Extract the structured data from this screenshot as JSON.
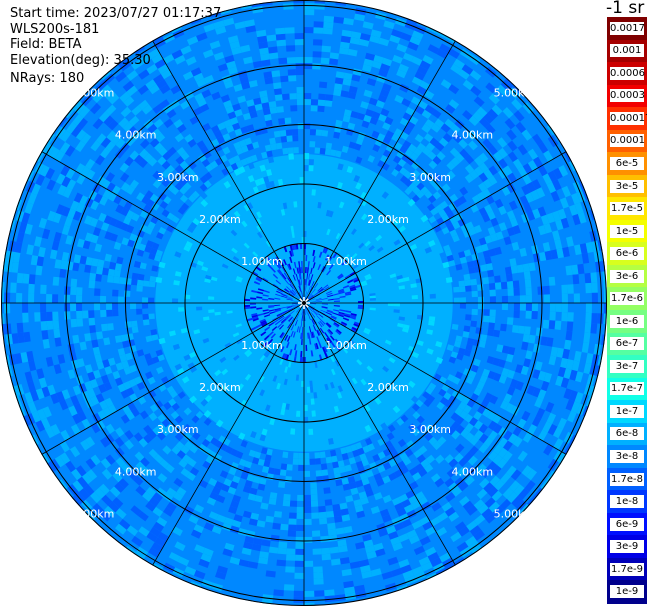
{
  "info": {
    "start_time": "Start time: 2023/07/27 01:17:37",
    "device": "WLS200s-181",
    "field": "Field: BETA",
    "elevation": "Elevation(deg): 35.30",
    "nrays": "NRays: 180"
  },
  "colorbar": {
    "unit_label": "-1 sr",
    "labels": [
      "0.0017",
      "0.001",
      "0.0006",
      "0.0003",
      "0.00017",
      "0.0001",
      "6e-5",
      "3e-5",
      "1.7e-5",
      "1e-5",
      "6e-6",
      "3e-6",
      "1.7e-6",
      "1e-6",
      "6e-7",
      "3e-7",
      "1.7e-7",
      "1e-7",
      "6e-8",
      "3e-8",
      "1.7e-8",
      "1e-8",
      "6e-9",
      "3e-9",
      "1.7e-9",
      "1e-9"
    ],
    "colors": [
      "#7f0000",
      "#a50000",
      "#cc0000",
      "#f20000",
      "#ff3000",
      "#ff6000",
      "#ff9000",
      "#ffbf00",
      "#ffe600",
      "#f4ff00",
      "#d8ff1e",
      "#b5ff42",
      "#94ff63",
      "#75ff82",
      "#55ffa2",
      "#33ffc3",
      "#10ffe7",
      "#00d8ff",
      "#00b0ff",
      "#0088ff",
      "#0060ff",
      "#0038ff",
      "#0010ff",
      "#0000e6",
      "#0000b8",
      "#00008c"
    ]
  },
  "chart_data": {
    "type": "polar-ppi",
    "field": "BETA",
    "rays": 180,
    "range_rings_km": [
      1,
      2,
      3,
      4,
      5
    ],
    "ring_labels": [
      "1.00km",
      "2.00km",
      "3.00km",
      "4.00km",
      "5.00km"
    ],
    "radial_spokes": 12,
    "max_range_km": 5.0,
    "radial_profile_color_index": [
      {
        "r_km": [
          0.0,
          1.0
        ],
        "index": 22
      },
      {
        "r_km": [
          1.0,
          2.0
        ],
        "index": 18
      },
      {
        "r_km": [
          2.0,
          2.5
        ],
        "index": 18
      },
      {
        "r_km": [
          2.5,
          3.0
        ],
        "index": 19
      },
      {
        "r_km": [
          3.0,
          5.2
        ],
        "index": 19
      }
    ]
  }
}
